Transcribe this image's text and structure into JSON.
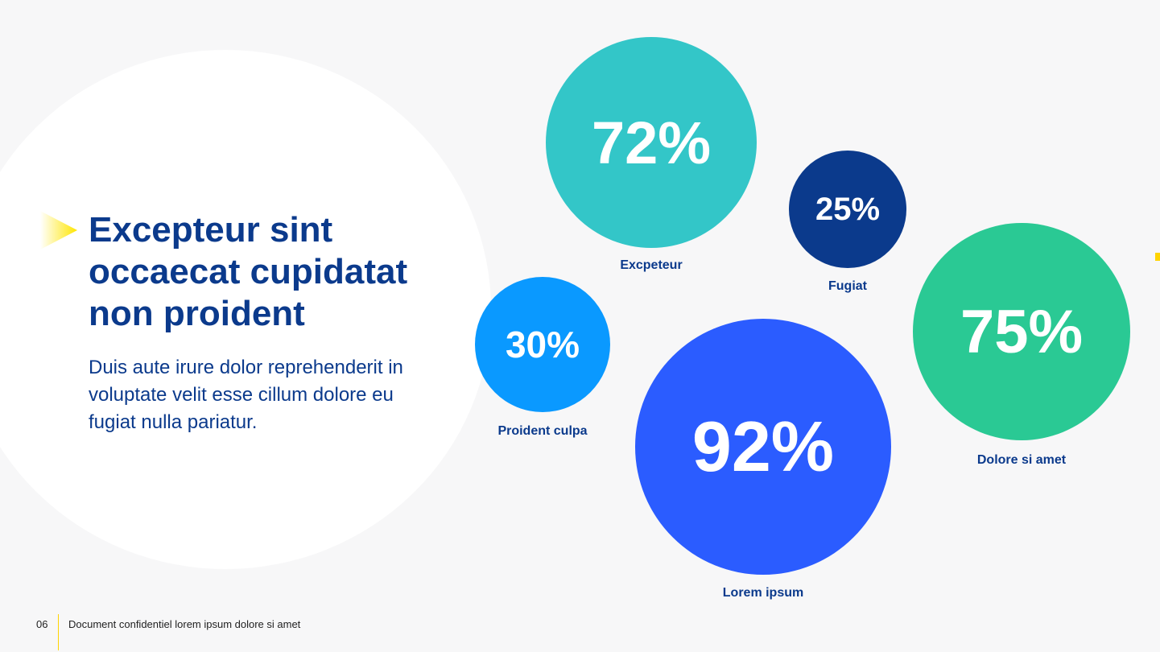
{
  "slide": {
    "title": "Excepteur sint occaecat cupidatat non proident",
    "body": "Duis aute irure dolor reprehenderit in voluptate velit esse cillum dolore eu fugiat nulla pariatur.",
    "accent_color": "#ffd400",
    "text_color": "#0b3a8c"
  },
  "chart_data": {
    "type": "bubble",
    "series": [
      {
        "name": "Excpeteur",
        "value": 72,
        "label": "72%",
        "color": "#33c6c8"
      },
      {
        "name": "Fugiat",
        "value": 25,
        "label": "25%",
        "color": "#0b3a8c"
      },
      {
        "name": "Proident culpa",
        "value": 30,
        "label": "30%",
        "color": "#0a99ff"
      },
      {
        "name": "Lorem ipsum",
        "value": 92,
        "label": "92%",
        "color": "#2b5cff"
      },
      {
        "name": "Dolore si amet",
        "value": 75,
        "label": "75%",
        "color": "#2ac994"
      }
    ]
  },
  "footer": {
    "page_number": "06",
    "text": "Document confidentiel lorem ipsum dolore si amet"
  }
}
